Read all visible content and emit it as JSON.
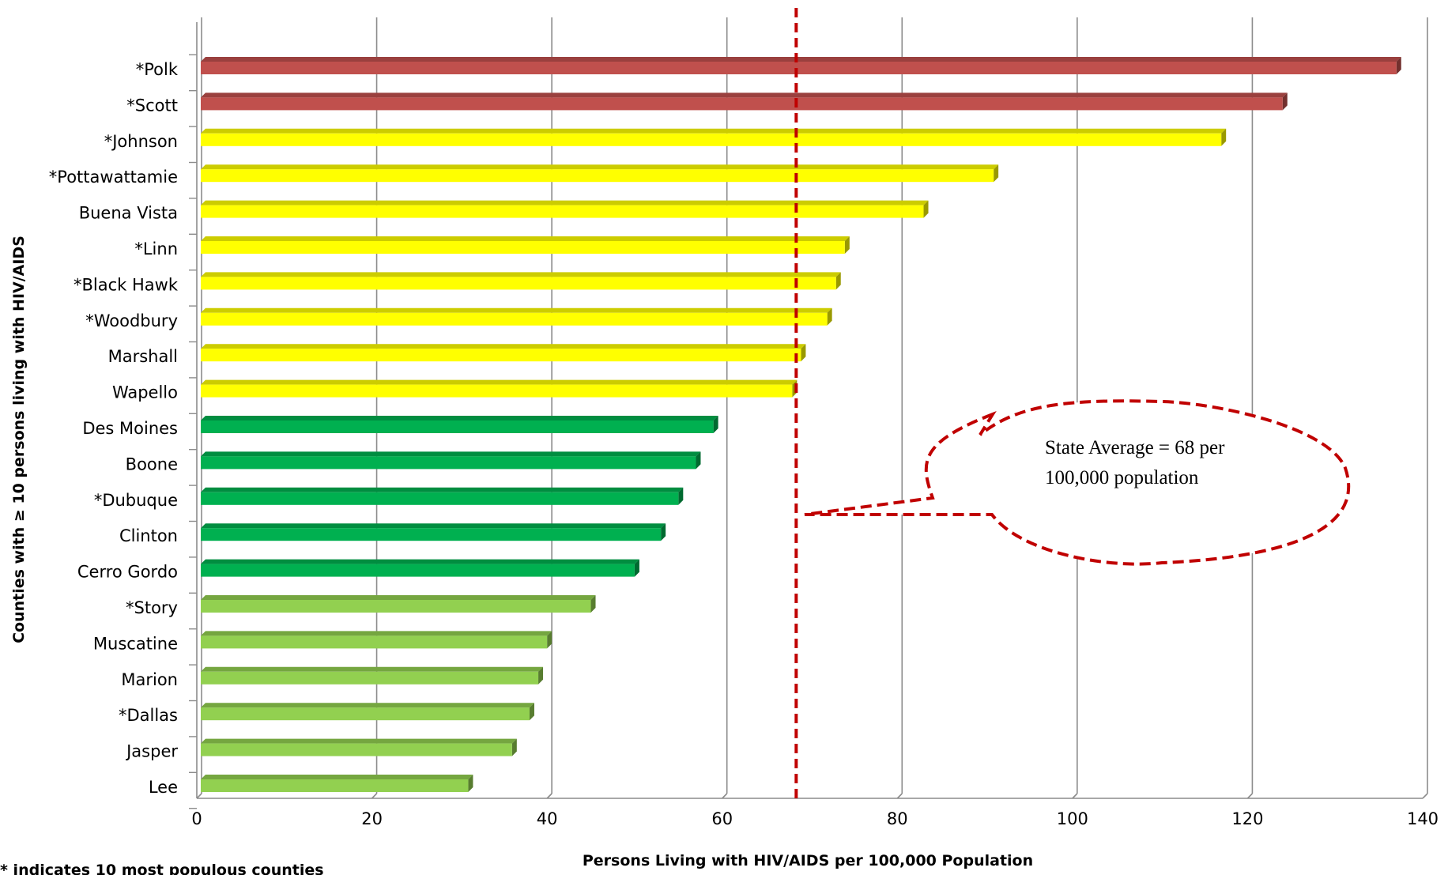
{
  "chart_data": {
    "type": "bar",
    "orientation": "horizontal",
    "xlabel": "Persons Living with HIV/AIDS per 100,000  Population",
    "ylabel": "Counties with  ≥ 10 persons living with HIV/AIDS",
    "xlim": [
      0,
      140
    ],
    "x_ticks": [
      "0",
      "20",
      "40",
      "60",
      "80",
      "100",
      "120",
      "140"
    ],
    "grid": "vertical",
    "categories": [
      "*Polk",
      "*Scott",
      "*Johnson",
      "*Pottawattamie",
      "Buena Vista",
      "*Linn",
      "*Black Hawk",
      "*Woodbury",
      "Marshall",
      "Wapello",
      "Des Moines",
      "Boone",
      "*Dubuque",
      "Clinton",
      "Cerro Gordo",
      "*Story",
      "Muscatine",
      "Marion",
      "*Dallas",
      "Jasper",
      "Lee"
    ],
    "values": [
      137,
      124,
      117,
      91,
      83,
      74,
      73,
      72,
      69,
      68,
      59,
      57,
      55,
      53,
      50,
      45,
      40,
      39,
      38,
      36,
      31
    ],
    "bar_colors": [
      "#c0504d",
      "#c0504d",
      "#ffff00",
      "#ffff00",
      "#ffff00",
      "#ffff00",
      "#ffff00",
      "#ffff00",
      "#ffff00",
      "#ffff00",
      "#00b050",
      "#00b050",
      "#00b050",
      "#00b050",
      "#00b050",
      "#92d050",
      "#92d050",
      "#92d050",
      "#92d050",
      "#92d050",
      "#92d050"
    ],
    "reference_line": {
      "value": 68,
      "color": "#c00000",
      "style": "dashed"
    },
    "annotation": {
      "lines": [
        "State Average = 68 per",
        "100,000 population"
      ]
    },
    "footnote": "* indicates 10 most populous counties"
  }
}
